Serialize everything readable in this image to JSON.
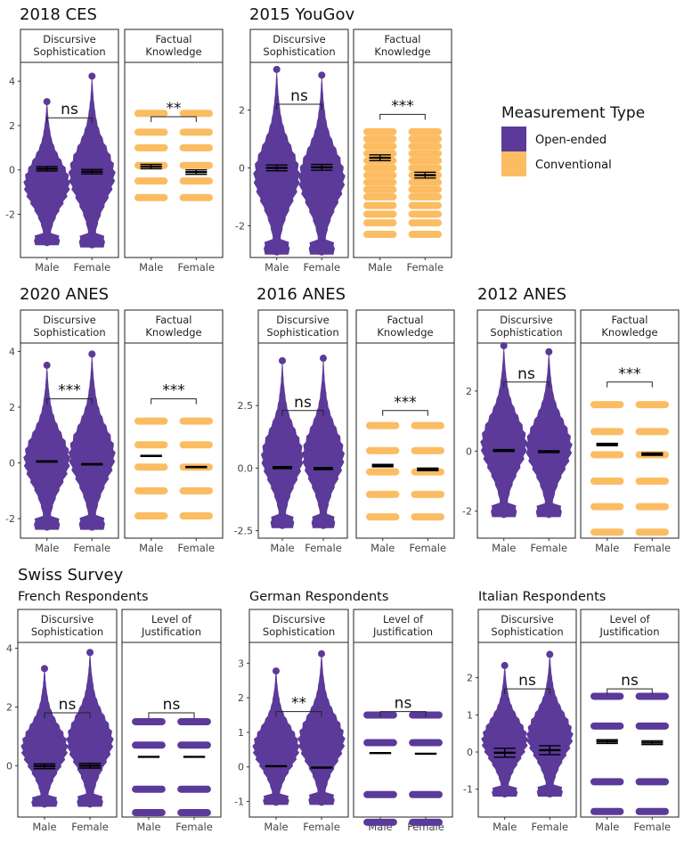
{
  "figure": {
    "section_titles": [
      "2018 CES",
      "2015 YouGov",
      "2020 ANES",
      "2016 ANES",
      "2012 ANES",
      "Swiss Survey"
    ],
    "sub_titles": [
      "French Respondents",
      "German Respondents",
      "Italian Respondents"
    ],
    "legend": {
      "title": "Measurement Type",
      "items": [
        {
          "label": "Open-ended",
          "color": "#5b3a99"
        },
        {
          "label": "Conventional",
          "color": "#fcbc62"
        }
      ]
    }
  },
  "chart_data": [
    {
      "type": "scatter",
      "study": "2018 CES",
      "facet_label": [
        "Discursive",
        "Sophistication"
      ],
      "measurement": "Open-ended",
      "categories": [
        "Male",
        "Female"
      ],
      "ylim": [
        -3.95,
        4.85
      ],
      "yticks": [
        -2,
        0,
        2,
        4
      ],
      "ytick_labels": [
        "-2",
        "0",
        "2",
        "4"
      ],
      "means": [
        0.05,
        -0.08
      ],
      "ci_halfwidth": 0.1,
      "significance": "ns",
      "bracket_y": 2.35,
      "min": [
        -3.4,
        -3.5
      ],
      "max": [
        3.2,
        4.35
      ],
      "style": "violin"
    },
    {
      "type": "scatter",
      "study": "2018 CES",
      "facet_label": [
        "Factual",
        "Knowledge"
      ],
      "measurement": "Conventional",
      "categories": [
        "Male",
        "Female"
      ],
      "ylim": [
        -3.95,
        4.85
      ],
      "means": [
        0.15,
        -0.1
      ],
      "ci_halfwidth": 0.1,
      "significance": "**",
      "bracket_y": 2.4,
      "levels": [
        -1.25,
        -0.5,
        0.2,
        1.0,
        1.7,
        2.55
      ],
      "style": "levels"
    },
    {
      "type": "scatter",
      "study": "2015 YouGov",
      "facet_label": [
        "Discursive",
        "Sophistication"
      ],
      "measurement": "Open-ended",
      "categories": [
        "Male",
        "Female"
      ],
      "ylim": [
        -3.1,
        3.65
      ],
      "yticks": [
        -2,
        0,
        2
      ],
      "ytick_labels": [
        "-2",
        "0",
        "2"
      ],
      "means": [
        0.0,
        0.02
      ],
      "ci_halfwidth": 0.1,
      "significance": "ns",
      "bracket_y": 2.2,
      "min": [
        -3.0,
        -3.0
      ],
      "max": [
        3.5,
        3.3
      ],
      "style": "violin"
    },
    {
      "type": "scatter",
      "study": "2015 YouGov",
      "facet_label": [
        "Factual",
        "Knowledge"
      ],
      "measurement": "Conventional",
      "categories": [
        "Male",
        "Female"
      ],
      "ylim": [
        -3.1,
        3.65
      ],
      "means": [
        0.35,
        -0.25
      ],
      "ci_halfwidth": 0.1,
      "significance": "***",
      "bracket_y": 1.85,
      "levels": [
        -2.3,
        -1.9,
        -1.6,
        -1.3,
        -1.0,
        -0.75,
        -0.5,
        -0.25,
        0.0,
        0.25,
        0.5,
        0.75,
        1.0,
        1.25
      ],
      "style": "levels"
    },
    {
      "type": "scatter",
      "study": "2020 ANES",
      "facet_label": [
        "Discursive",
        "Sophistication"
      ],
      "measurement": "Open-ended",
      "categories": [
        "Male",
        "Female"
      ],
      "ylim": [
        -2.7,
        4.3
      ],
      "yticks": [
        -2,
        0,
        2,
        4
      ],
      "ytick_labels": [
        "-2",
        "0",
        "2",
        "4"
      ],
      "means": [
        0.05,
        -0.05
      ],
      "ci_halfwidth": 0.02,
      "significance": "***",
      "bracket_y": 2.3,
      "min": [
        -2.4,
        -2.4
      ],
      "max": [
        3.6,
        4.0
      ],
      "style": "violin"
    },
    {
      "type": "scatter",
      "study": "2020 ANES",
      "facet_label": [
        "Factual",
        "Knowledge"
      ],
      "measurement": "Conventional",
      "categories": [
        "Male",
        "Female"
      ],
      "ylim": [
        -2.7,
        4.3
      ],
      "means": [
        0.25,
        -0.15
      ],
      "ci_halfwidth": 0.02,
      "significance": "***",
      "bracket_y": 2.3,
      "levels": [
        -1.9,
        -1.0,
        -0.15,
        0.65,
        1.5
      ],
      "style": "levels"
    },
    {
      "type": "scatter",
      "study": "2016 ANES",
      "facet_label": [
        "Discursive",
        "Sophistication"
      ],
      "measurement": "Open-ended",
      "categories": [
        "Male",
        "Female"
      ],
      "ylim": [
        -2.8,
        5.0
      ],
      "yticks": [
        -2.5,
        0,
        2.5
      ],
      "ytick_labels": [
        "-2.5",
        "0.0",
        "2.5"
      ],
      "means": [
        0.02,
        -0.02
      ],
      "ci_halfwidth": 0.04,
      "significance": "ns",
      "bracket_y": 2.3,
      "min": [
        -2.4,
        -2.4
      ],
      "max": [
        4.4,
        4.5
      ],
      "style": "violin"
    },
    {
      "type": "scatter",
      "study": "2016 ANES",
      "facet_label": [
        "Factual",
        "Knowledge"
      ],
      "measurement": "Conventional",
      "categories": [
        "Male",
        "Female"
      ],
      "ylim": [
        -2.8,
        5.0
      ],
      "means": [
        0.1,
        -0.05
      ],
      "ci_halfwidth": 0.05,
      "significance": "***",
      "bracket_y": 2.3,
      "levels": [
        -1.95,
        -1.05,
        -0.15,
        0.7,
        1.7
      ],
      "style": "levels"
    },
    {
      "type": "scatter",
      "study": "2012 ANES",
      "facet_label": [
        "Discursive",
        "Sophistication"
      ],
      "measurement": "Open-ended",
      "categories": [
        "Male",
        "Female"
      ],
      "ylim": [
        -2.9,
        3.6
      ],
      "yticks": [
        -2,
        0,
        2
      ],
      "ytick_labels": [
        "-2",
        "0",
        "2"
      ],
      "means": [
        0.02,
        -0.02
      ],
      "ci_halfwidth": 0.03,
      "significance": "ns",
      "bracket_y": 2.3,
      "min": [
        -2.2,
        -2.2
      ],
      "max": [
        3.6,
        3.4
      ],
      "style": "violin"
    },
    {
      "type": "scatter",
      "study": "2012 ANES",
      "facet_label": [
        "Factual",
        "Knowledge"
      ],
      "measurement": "Conventional",
      "categories": [
        "Male",
        "Female"
      ],
      "ylim": [
        -2.9,
        3.6
      ],
      "means": [
        0.22,
        -0.1
      ],
      "ci_halfwidth": 0.04,
      "significance": "***",
      "bracket_y": 2.3,
      "levels": [
        -2.7,
        -1.85,
        -1.0,
        -0.12,
        0.65,
        1.55
      ],
      "style": "levels"
    },
    {
      "type": "scatter",
      "study": "Swiss Survey - French Respondents",
      "facet_label": [
        "Discursive",
        "Sophistication"
      ],
      "measurement": "Open-ended",
      "categories": [
        "Male",
        "Female"
      ],
      "ylim": [
        -1.75,
        4.2
      ],
      "yticks": [
        0,
        2,
        4
      ],
      "ytick_labels": [
        "0",
        "2",
        "4"
      ],
      "means": [
        -0.02,
        0.0
      ],
      "ci_halfwidth": 0.08,
      "significance": "ns",
      "bracket_y": 1.8,
      "min": [
        -1.4,
        -1.4
      ],
      "max": [
        3.4,
        3.95
      ],
      "style": "violin"
    },
    {
      "type": "scatter",
      "study": "Swiss Survey - French Respondents",
      "facet_label": [
        "Level of",
        "Justification"
      ],
      "measurement": "Open-ended",
      "categories": [
        "Male",
        "Female"
      ],
      "ylim": [
        -1.75,
        4.2
      ],
      "means": [
        0.3,
        0.3
      ],
      "ci_halfwidth": 0.0,
      "significance": "ns",
      "bracket_y": 1.8,
      "levels": [
        -1.6,
        -0.8,
        0.7,
        1.5
      ],
      "style": "levels"
    },
    {
      "type": "scatter",
      "study": "Swiss Survey - German Respondents",
      "facet_label": [
        "Discursive",
        "Sophistication"
      ],
      "measurement": "Open-ended",
      "categories": [
        "Male",
        "Female"
      ],
      "ylim": [
        -1.45,
        3.6
      ],
      "yticks": [
        -1,
        0,
        1,
        2,
        3
      ],
      "ytick_labels": [
        "-1",
        "0",
        "1",
        "2",
        "3"
      ],
      "means": [
        0.02,
        -0.02
      ],
      "ci_halfwidth": 0.0,
      "significance": "**",
      "bracket_y": 1.6,
      "min": [
        -1.1,
        -1.1
      ],
      "max": [
        2.85,
        3.35
      ],
      "style": "violin"
    },
    {
      "type": "scatter",
      "study": "Swiss Survey - German Respondents",
      "facet_label": [
        "Level of",
        "Justification"
      ],
      "measurement": "Open-ended",
      "categories": [
        "Male",
        "Female"
      ],
      "ylim": [
        -1.45,
        3.6
      ],
      "means": [
        0.4,
        0.38
      ],
      "ci_halfwidth": 0.0,
      "significance": "ns",
      "bracket_y": 1.6,
      "levels": [
        -1.6,
        -0.8,
        0.7,
        1.5
      ],
      "style": "levels"
    },
    {
      "type": "scatter",
      "study": "Swiss Survey - Italian Respondents",
      "facet_label": [
        "Discursive",
        "Sophistication"
      ],
      "measurement": "Open-ended",
      "categories": [
        "Male",
        "Female"
      ],
      "ylim": [
        -1.75,
        2.95
      ],
      "yticks": [
        -1,
        0,
        1,
        2
      ],
      "ytick_labels": [
        "-1",
        "0",
        "1",
        "2"
      ],
      "means": [
        -0.02,
        0.05
      ],
      "ci_halfwidth": 0.12,
      "significance": "ns",
      "bracket_y": 1.7,
      "min": [
        -1.2,
        -1.2
      ],
      "max": [
        2.4,
        2.7
      ],
      "style": "violin"
    },
    {
      "type": "scatter",
      "study": "Swiss Survey - Italian Respondents",
      "facet_label": [
        "Level of",
        "Justification"
      ],
      "measurement": "Open-ended",
      "categories": [
        "Male",
        "Female"
      ],
      "ylim": [
        -1.75,
        2.95
      ],
      "means": [
        0.28,
        0.25
      ],
      "ci_halfwidth": 0.05,
      "significance": "ns",
      "bracket_y": 1.7,
      "levels": [
        -1.6,
        -0.8,
        0.7,
        1.5
      ],
      "style": "levels"
    }
  ]
}
